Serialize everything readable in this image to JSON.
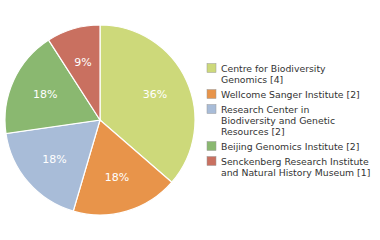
{
  "chart_data": {
    "type": "pie",
    "categories": [
      "Centre for Biodiversity\nGenomics [4]",
      "Wellcome Sanger Institute [2]",
      "Research Center in\nBiodiversity and Genetic\nResources [2]",
      "Beijing Genomics Institute [2]",
      "Senckenberg Research Institute\nand Natural History Museum [1]"
    ],
    "values": [
      36,
      18,
      18,
      18,
      9
    ],
    "value_labels": [
      "36%",
      "18%",
      "18%",
      "18%",
      "9%"
    ],
    "colors": [
      "#cdd97a",
      "#e8944a",
      "#a8bcd8",
      "#8ab870",
      "#c97060"
    ],
    "data_labels": true,
    "legend": "right"
  }
}
